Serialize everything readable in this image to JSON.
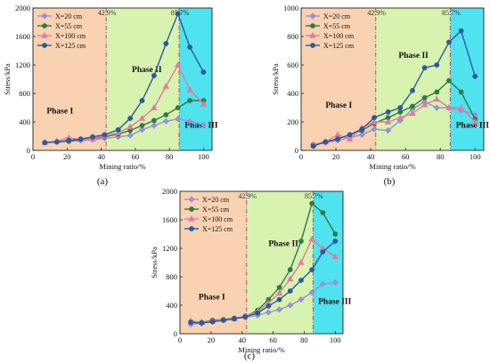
{
  "chart_data": [
    {
      "panel_label": "(a)",
      "type": "line",
      "xlabel": "Mining ratio/%",
      "ylabel": "Stress/kPa",
      "xlim": [
        0,
        105
      ],
      "ylim": [
        0,
        2000
      ],
      "xticks": [
        0,
        20,
        40,
        60,
        80,
        100
      ],
      "yticks": [
        0,
        400,
        800,
        1200,
        1600,
        2000
      ],
      "phase_boundaries": [
        {
          "x": 42.9,
          "label": "42.9%"
        },
        {
          "x": 85.7,
          "label": "85.7%"
        }
      ],
      "phases": [
        {
          "label": "Phase I",
          "x_range": [
            0,
            42.9
          ],
          "color": "#f9d2b1",
          "text_at": [
            8,
            520
          ]
        },
        {
          "label": "Phase II",
          "x_range": [
            42.9,
            85.7
          ],
          "color": "#d8f2b0",
          "text_at": [
            58,
            1100
          ]
        },
        {
          "label": "Phase III",
          "x_range": [
            85.7,
            105
          ],
          "color": "#4fe3ef",
          "text_at": [
            89,
            320
          ]
        }
      ],
      "legend_position": "top-left",
      "series": [
        {
          "name": "X=20 cm",
          "color": "#9b8fd6",
          "marker": "diamond",
          "x": [
            7,
            14,
            21,
            28,
            35,
            42,
            50,
            57,
            64,
            71,
            78,
            85,
            92,
            100
          ],
          "y": [
            110,
            120,
            130,
            140,
            150,
            170,
            190,
            210,
            290,
            350,
            410,
            440,
            410,
            360
          ]
        },
        {
          "name": "X=55 cm",
          "color": "#2f7a4a",
          "marker": "circle",
          "x": [
            7,
            14,
            21,
            28,
            35,
            42,
            50,
            57,
            64,
            71,
            78,
            85,
            92,
            100
          ],
          "y": [
            110,
            120,
            130,
            150,
            170,
            190,
            230,
            280,
            350,
            420,
            500,
            600,
            700,
            700
          ]
        },
        {
          "name": "X=100 cm",
          "color": "#e07aa0",
          "marker": "triangle",
          "x": [
            7,
            14,
            21,
            28,
            35,
            42,
            50,
            57,
            64,
            71,
            78,
            85,
            92,
            100
          ],
          "y": [
            110,
            130,
            180,
            150,
            170,
            200,
            250,
            330,
            450,
            600,
            900,
            1200,
            850,
            650
          ]
        },
        {
          "name": "X=125 cm",
          "color": "#2a5a9e",
          "marker": "circle",
          "x": [
            7,
            14,
            21,
            28,
            35,
            42,
            50,
            57,
            64,
            71,
            78,
            85,
            92,
            100
          ],
          "y": [
            110,
            120,
            140,
            160,
            190,
            220,
            290,
            450,
            700,
            1050,
            1500,
            1920,
            1450,
            1100
          ]
        }
      ]
    },
    {
      "panel_label": "(b)",
      "type": "line",
      "xlabel": "Mining ratio/%",
      "ylabel": "Stress/kPa",
      "xlim": [
        0,
        105
      ],
      "ylim": [
        0,
        1000
      ],
      "xticks": [
        0,
        20,
        40,
        60,
        80,
        100
      ],
      "yticks": [
        0,
        200,
        400,
        600,
        800,
        1000
      ],
      "phase_boundaries": [
        {
          "x": 42.9,
          "label": "42.9%"
        },
        {
          "x": 85.7,
          "label": "85.7%"
        }
      ],
      "phases": [
        {
          "label": "Phase I",
          "x_range": [
            0,
            42.9
          ],
          "color": "#f9d2b1",
          "text_at": [
            14,
            300
          ]
        },
        {
          "label": "Phase II",
          "x_range": [
            42.9,
            85.7
          ],
          "color": "#d8f2b0",
          "text_at": [
            56,
            650
          ]
        },
        {
          "label": "Phase III",
          "x_range": [
            85.7,
            105
          ],
          "color": "#4fe3ef",
          "text_at": [
            89,
            160
          ]
        }
      ],
      "legend_position": "top-left",
      "series": [
        {
          "name": "X=20 cm",
          "color": "#9b8fd6",
          "marker": "diamond",
          "x": [
            7,
            14,
            21,
            28,
            35,
            42,
            50,
            57,
            64,
            71,
            78,
            85,
            92,
            100
          ],
          "y": [
            40,
            55,
            70,
            90,
            110,
            150,
            140,
            210,
            290,
            340,
            300,
            300,
            280,
            250
          ]
        },
        {
          "name": "X=55 cm",
          "color": "#2f7a4a",
          "marker": "circle",
          "x": [
            7,
            14,
            21,
            28,
            35,
            42,
            50,
            57,
            64,
            71,
            78,
            85,
            92,
            100
          ],
          "y": [
            40,
            60,
            80,
            110,
            140,
            190,
            230,
            270,
            310,
            370,
            410,
            490,
            410,
            220
          ]
        },
        {
          "name": "X=100 cm",
          "color": "#e07aa0",
          "marker": "triangle",
          "x": [
            7,
            14,
            21,
            28,
            35,
            42,
            50,
            57,
            64,
            71,
            78,
            85,
            92,
            100
          ],
          "y": [
            40,
            60,
            110,
            80,
            160,
            200,
            200,
            230,
            260,
            320,
            360,
            300,
            300,
            200
          ]
        },
        {
          "name": "X=125 cm",
          "color": "#2a5a9e",
          "marker": "circle",
          "x": [
            7,
            14,
            21,
            28,
            35,
            42,
            50,
            57,
            64,
            71,
            78,
            85,
            92,
            100
          ],
          "y": [
            30,
            60,
            80,
            110,
            150,
            230,
            270,
            300,
            420,
            580,
            600,
            760,
            840,
            520
          ]
        }
      ]
    },
    {
      "panel_label": "(c)",
      "type": "line",
      "xlabel": "Mining ratio/%",
      "ylabel": "Stress/kPa",
      "xlim": [
        0,
        105
      ],
      "ylim": [
        0,
        2000
      ],
      "xticks": [
        0,
        20,
        40,
        60,
        80,
        100
      ],
      "yticks": [
        0,
        400,
        800,
        1200,
        1600,
        2000
      ],
      "phase_boundaries": [
        {
          "x": 42.9,
          "label": "42.9%"
        },
        {
          "x": 85.7,
          "label": "85.7%"
        }
      ],
      "phases": [
        {
          "label": "Phase I",
          "x_range": [
            0,
            42.9
          ],
          "color": "#f9d2b1",
          "text_at": [
            12,
            480
          ]
        },
        {
          "label": "Phase II",
          "x_range": [
            42.9,
            85.7
          ],
          "color": "#d8f2b0",
          "text_at": [
            57,
            1230
          ]
        },
        {
          "label": "Phase III",
          "x_range": [
            85.7,
            105
          ],
          "color": "#4fe3ef",
          "text_at": [
            89,
            420
          ]
        }
      ],
      "legend_position": "top-left",
      "series": [
        {
          "name": "X=20 cm",
          "color": "#9b8fd6",
          "marker": "diamond",
          "x": [
            7,
            14,
            21,
            28,
            35,
            42,
            50,
            57,
            64,
            71,
            78,
            85,
            92,
            100
          ],
          "y": [
            130,
            150,
            170,
            190,
            210,
            230,
            260,
            300,
            340,
            400,
            480,
            580,
            700,
            720
          ]
        },
        {
          "name": "X=55 cm",
          "color": "#2f7a4a",
          "marker": "circle",
          "x": [
            7,
            14,
            21,
            28,
            35,
            42,
            50,
            57,
            64,
            71,
            78,
            85,
            92,
            100
          ],
          "y": [
            170,
            160,
            190,
            200,
            220,
            240,
            330,
            480,
            650,
            900,
            1300,
            1830,
            1700,
            1400
          ]
        },
        {
          "name": "X=100 cm",
          "color": "#e07aa0",
          "marker": "triangle",
          "x": [
            7,
            14,
            21,
            28,
            35,
            42,
            50,
            57,
            64,
            71,
            78,
            85,
            92,
            100
          ],
          "y": [
            180,
            160,
            180,
            200,
            210,
            250,
            310,
            430,
            570,
            770,
            1000,
            1330,
            1200,
            1080
          ]
        },
        {
          "name": "X=125 cm",
          "color": "#2a5a9e",
          "marker": "circle",
          "x": [
            7,
            14,
            21,
            28,
            35,
            42,
            50,
            57,
            64,
            71,
            78,
            85,
            92,
            100
          ],
          "y": [
            160,
            150,
            170,
            190,
            210,
            240,
            290,
            390,
            480,
            600,
            750,
            900,
            1150,
            1300
          ]
        }
      ]
    }
  ]
}
